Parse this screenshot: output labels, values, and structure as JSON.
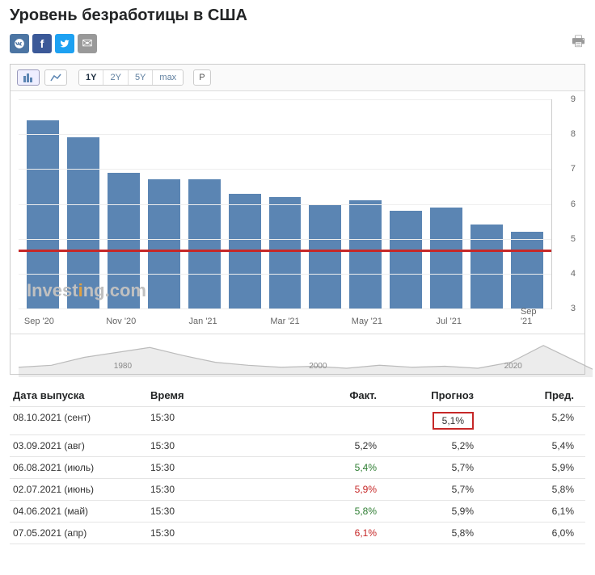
{
  "title": "Уровень безработицы в США",
  "social": {
    "vk": "VK",
    "fb": "f",
    "tw": "t",
    "mail": "✉"
  },
  "toolbar": {
    "chart_types": [
      "bar",
      "line"
    ],
    "active_type": 0,
    "ranges": [
      "1Y",
      "2Y",
      "5Y",
      "max"
    ],
    "active_range": 0,
    "p_button": "P"
  },
  "chart": {
    "type": "bar",
    "bar_color": "#5b85b3",
    "grid_color": "#eeeeee",
    "background": "#ffffff",
    "reference_line": {
      "value": 4.7,
      "color": "#c62828",
      "width": 3
    },
    "ymin": 3,
    "ymax": 9,
    "ytick_step": 1,
    "xlabels": [
      "Sep '20",
      "",
      "Nov '20",
      "",
      "Jan '21",
      "",
      "Mar '21",
      "",
      "May '21",
      "",
      "Jul '21",
      "",
      "Sep '21"
    ],
    "values": [
      8.4,
      7.9,
      6.9,
      6.7,
      6.7,
      6.3,
      6.2,
      6.0,
      6.1,
      5.8,
      5.9,
      5.4,
      5.2
    ],
    "watermark": "Investing.com"
  },
  "nav": {
    "labels": [
      "1980",
      "2000",
      "2020"
    ]
  },
  "table": {
    "headers": {
      "date": "Дата выпуска",
      "time": "Время",
      "fact": "Факт.",
      "forecast": "Прогноз",
      "prev": "Пред."
    },
    "rows": [
      {
        "date": "08.10.2021 (сент)",
        "time": "15:30",
        "fact": "",
        "fact_cls": "",
        "forecast": "5,1%",
        "prev": "5,2%",
        "highlight_fore": true
      },
      {
        "date": "03.09.2021 (авг)",
        "time": "15:30",
        "fact": "5,2%",
        "fact_cls": "",
        "forecast": "5,2%",
        "prev": "5,4%"
      },
      {
        "date": "06.08.2021 (июль)",
        "time": "15:30",
        "fact": "5,4%",
        "fact_cls": "green",
        "forecast": "5,7%",
        "prev": "5,9%"
      },
      {
        "date": "02.07.2021 (июнь)",
        "time": "15:30",
        "fact": "5,9%",
        "fact_cls": "red",
        "forecast": "5,7%",
        "prev": "5,8%"
      },
      {
        "date": "04.06.2021 (май)",
        "time": "15:30",
        "fact": "5,8%",
        "fact_cls": "green",
        "forecast": "5,9%",
        "prev": "6,1%"
      },
      {
        "date": "07.05.2021 (апр)",
        "time": "15:30",
        "fact": "6,1%",
        "fact_cls": "red",
        "forecast": "5,8%",
        "prev": "6,0%"
      }
    ]
  }
}
